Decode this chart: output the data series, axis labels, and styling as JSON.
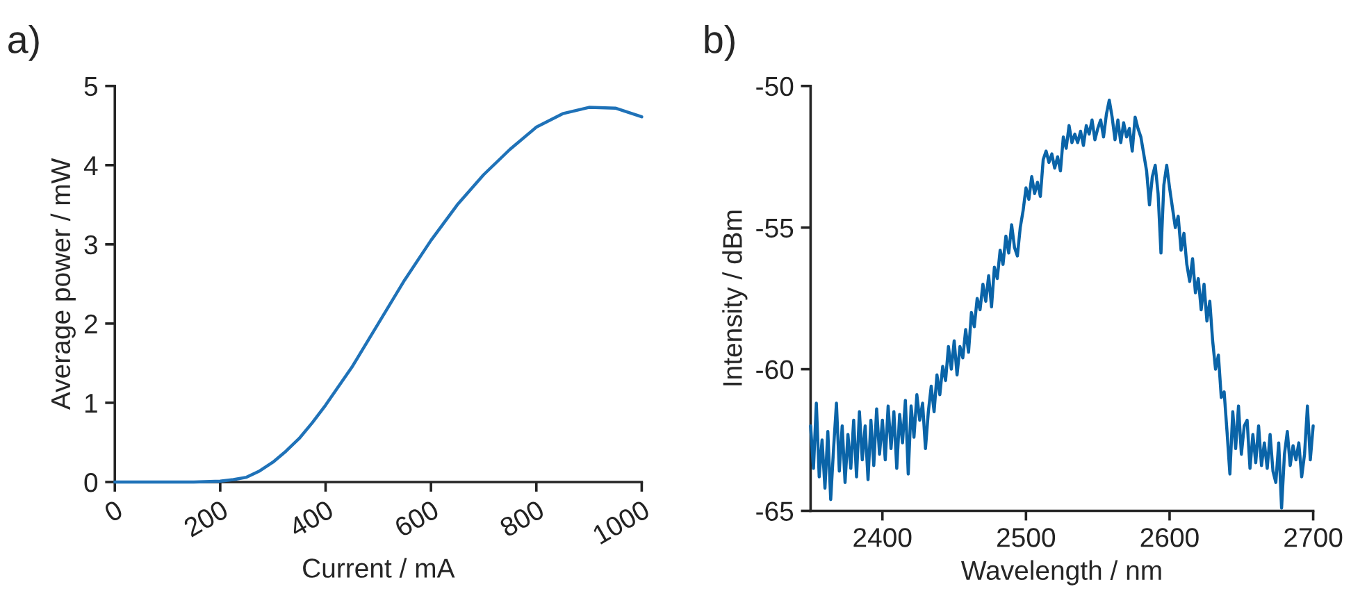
{
  "chart_data": [
    {
      "type": "line",
      "title": "a)",
      "xlabel": "Current / mA",
      "ylabel": "Average power / mW",
      "xlim": [
        0,
        1000
      ],
      "ylim": [
        0,
        5
      ],
      "xticks": [
        0,
        200,
        400,
        600,
        800,
        1000
      ],
      "yticks": [
        0,
        1,
        2,
        3,
        4,
        5
      ],
      "grid": false,
      "legend": false,
      "series": [
        {
          "color": "#1f72b8",
          "x": [
            0,
            50,
            100,
            150,
            200,
            225,
            250,
            275,
            300,
            325,
            350,
            375,
            400,
            450,
            500,
            550,
            600,
            650,
            700,
            750,
            800,
            850,
            900,
            950,
            1000
          ],
          "values": [
            0,
            0,
            0,
            0,
            0.01,
            0.03,
            0.06,
            0.14,
            0.25,
            0.39,
            0.55,
            0.75,
            0.97,
            1.45,
            2.0,
            2.55,
            3.05,
            3.5,
            3.88,
            4.2,
            4.48,
            4.65,
            4.73,
            4.72,
            4.61
          ]
        }
      ]
    },
    {
      "type": "line",
      "title": "b)",
      "xlabel": "Wavelength / nm",
      "ylabel": "Intensity / dBm",
      "xlim": [
        2350,
        2700
      ],
      "ylim": [
        -65,
        -50
      ],
      "xticks": [
        2400,
        2500,
        2600,
        2700
      ],
      "yticks": [
        -65,
        -60,
        -55,
        -50
      ],
      "grid": false,
      "legend": false,
      "series": [
        {
          "color": "#0a64a8",
          "x": [
            2350,
            2352,
            2354,
            2356,
            2358,
            2360,
            2362,
            2364,
            2366,
            2368,
            2370,
            2372,
            2374,
            2376,
            2378,
            2380,
            2382,
            2384,
            2386,
            2388,
            2390,
            2392,
            2394,
            2396,
            2398,
            2400,
            2402,
            2404,
            2406,
            2408,
            2410,
            2412,
            2414,
            2416,
            2418,
            2420,
            2422,
            2424,
            2426,
            2428,
            2430,
            2432,
            2434,
            2436,
            2438,
            2440,
            2442,
            2444,
            2446,
            2448,
            2450,
            2452,
            2454,
            2456,
            2458,
            2460,
            2462,
            2464,
            2466,
            2468,
            2470,
            2472,
            2474,
            2476,
            2478,
            2480,
            2482,
            2484,
            2486,
            2488,
            2490,
            2492,
            2494,
            2496,
            2498,
            2500,
            2502,
            2504,
            2506,
            2508,
            2510,
            2512,
            2514,
            2516,
            2518,
            2520,
            2522,
            2524,
            2526,
            2528,
            2530,
            2532,
            2534,
            2536,
            2538,
            2540,
            2542,
            2544,
            2546,
            2548,
            2550,
            2552,
            2554,
            2556,
            2558,
            2560,
            2562,
            2564,
            2566,
            2568,
            2570,
            2572,
            2574,
            2576,
            2578,
            2580,
            2582,
            2584,
            2586,
            2588,
            2590,
            2592,
            2594,
            2596,
            2598,
            2600,
            2602,
            2604,
            2606,
            2608,
            2610,
            2612,
            2614,
            2616,
            2618,
            2620,
            2622,
            2624,
            2626,
            2628,
            2630,
            2632,
            2634,
            2636,
            2638,
            2640,
            2642,
            2644,
            2646,
            2648,
            2650,
            2652,
            2654,
            2656,
            2658,
            2660,
            2662,
            2664,
            2666,
            2668,
            2670,
            2672,
            2674,
            2676,
            2678,
            2680,
            2682,
            2684,
            2686,
            2688,
            2690,
            2692,
            2694,
            2696,
            2698,
            2700
          ],
          "values": [
            -62.0,
            -63.5,
            -61.2,
            -63.8,
            -62.5,
            -64.2,
            -62.2,
            -64.6,
            -62.8,
            -61.2,
            -63.6,
            -62.0,
            -64.0,
            -62.3,
            -63.5,
            -61.8,
            -63.8,
            -61.5,
            -63.2,
            -62.0,
            -63.9,
            -61.8,
            -63.4,
            -61.4,
            -63.0,
            -61.8,
            -63.2,
            -61.3,
            -62.8,
            -61.5,
            -63.5,
            -61.6,
            -62.6,
            -61.1,
            -63.7,
            -61.3,
            -62.4,
            -60.9,
            -61.8,
            -61.2,
            -62.8,
            -61.5,
            -60.6,
            -61.5,
            -60.2,
            -60.9,
            -59.9,
            -60.4,
            -59.2,
            -60.0,
            -59.0,
            -60.2,
            -59.2,
            -59.6,
            -58.6,
            -59.4,
            -58.0,
            -58.5,
            -57.5,
            -57.9,
            -57.0,
            -57.6,
            -56.7,
            -57.8,
            -56.4,
            -56.8,
            -55.8,
            -56.3,
            -55.3,
            -55.9,
            -54.9,
            -55.7,
            -56.0,
            -55.0,
            -54.4,
            -53.6,
            -54.0,
            -53.2,
            -53.8,
            -53.4,
            -53.9,
            -52.6,
            -52.3,
            -52.7,
            -52.4,
            -52.9,
            -52.5,
            -53.0,
            -51.8,
            -52.2,
            -51.4,
            -52.0,
            -51.7,
            -52.0,
            -51.6,
            -52.1,
            -51.4,
            -51.7,
            -51.2,
            -51.9,
            -51.5,
            -51.2,
            -51.8,
            -51.0,
            -50.5,
            -51.1,
            -51.9,
            -51.2,
            -52.0,
            -51.3,
            -51.8,
            -51.5,
            -52.3,
            -51.1,
            -51.5,
            -51.8,
            -52.4,
            -53.0,
            -54.2,
            -53.2,
            -52.8,
            -53.8,
            -55.9,
            -53.5,
            -52.8,
            -53.6,
            -54.3,
            -55.0,
            -54.6,
            -55.8,
            -55.2,
            -56.3,
            -56.9,
            -56.1,
            -57.3,
            -56.8,
            -57.9,
            -57.0,
            -58.3,
            -57.6,
            -59.0,
            -60.0,
            -59.5,
            -61.0,
            -60.8,
            -62.2,
            -63.7,
            -61.5,
            -62.8,
            -61.3,
            -63.0,
            -62.0,
            -61.8,
            -63.5,
            -62.3,
            -63.3,
            -62.0,
            -63.4,
            -62.6,
            -63.5,
            -62.3,
            -63.6,
            -64.0,
            -62.6,
            -64.9,
            -63.0,
            -62.2,
            -63.4,
            -62.7,
            -63.2,
            -62.6,
            -63.8,
            -63.0,
            -61.3,
            -63.2,
            -62.0
          ]
        }
      ]
    }
  ]
}
